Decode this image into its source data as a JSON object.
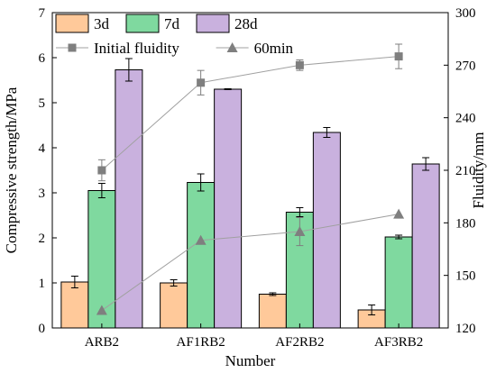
{
  "chart_data": {
    "type": "bar",
    "categories": [
      "ARB2",
      "AF1RB2",
      "AF2RB2",
      "AF3RB2"
    ],
    "xlabel": "Number",
    "ylabel": "Compressive strength/MPa",
    "y2label": "Fluidity/mm",
    "ylim": [
      0,
      7
    ],
    "y2lim": [
      120,
      300
    ],
    "yticks": [
      0,
      1,
      2,
      3,
      4,
      5,
      6,
      7
    ],
    "y2ticks": [
      120,
      150,
      180,
      210,
      240,
      270,
      300
    ],
    "legend_position": "top-left",
    "series": [
      {
        "name": "3d",
        "type": "bar",
        "axis": "left",
        "color": "#ffc99a",
        "values": [
          1.02,
          1.0,
          0.75,
          0.4
        ],
        "errors": [
          0.13,
          0.07,
          0.03,
          0.11
        ]
      },
      {
        "name": "7d",
        "type": "bar",
        "axis": "left",
        "color": "#7fd99f",
        "values": [
          3.05,
          3.23,
          2.57,
          2.02
        ],
        "errors": [
          0.16,
          0.19,
          0.1,
          0.04
        ]
      },
      {
        "name": "28d",
        "type": "bar",
        "axis": "left",
        "color": "#c9b1de",
        "values": [
          5.73,
          5.3,
          4.34,
          3.64
        ],
        "errors": [
          0.25,
          0.01,
          0.11,
          0.14
        ]
      },
      {
        "name": "Initial fluidity",
        "type": "line",
        "axis": "right",
        "marker": "square",
        "color": "#7f7f7f",
        "values": [
          210,
          260,
          270,
          275
        ],
        "errors": [
          6,
          7,
          3,
          7
        ]
      },
      {
        "name": "60min",
        "type": "line",
        "axis": "right",
        "marker": "triangle",
        "color": "#7f7f7f",
        "values": [
          130,
          170,
          175,
          185
        ],
        "errors": [
          0,
          0,
          8,
          0
        ]
      }
    ]
  }
}
